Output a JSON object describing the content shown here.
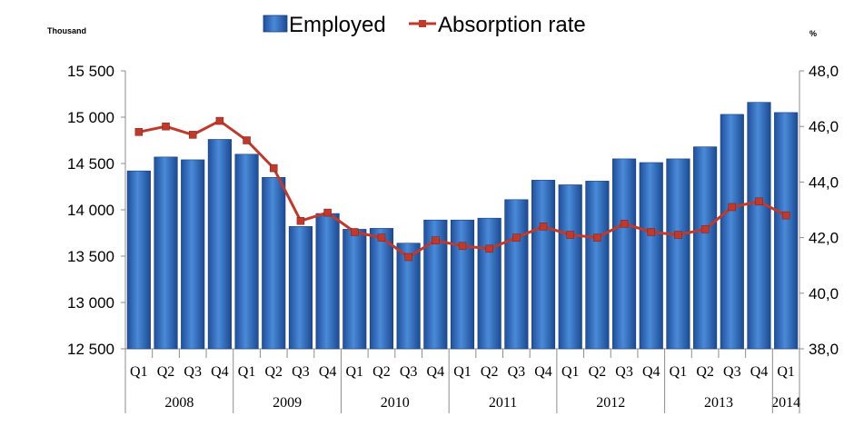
{
  "chart_data": {
    "type": "bar+line",
    "left_axis_unit": "Thousand",
    "right_axis_unit": "%",
    "quarters": [
      "Q1",
      "Q2",
      "Q3",
      "Q4",
      "Q1",
      "Q2",
      "Q3",
      "Q4",
      "Q1",
      "Q2",
      "Q3",
      "Q4",
      "Q1",
      "Q2",
      "Q3",
      "Q4",
      "Q1",
      "Q2",
      "Q3",
      "Q4",
      "Q1",
      "Q2",
      "Q3",
      "Q4",
      "Q1"
    ],
    "years": [
      {
        "label": "2008",
        "start": 0,
        "end": 4
      },
      {
        "label": "2009",
        "start": 4,
        "end": 8
      },
      {
        "label": "2010",
        "start": 8,
        "end": 12
      },
      {
        "label": "2011",
        "start": 12,
        "end": 16
      },
      {
        "label": "2012",
        "start": 16,
        "end": 20
      },
      {
        "label": "2013",
        "start": 20,
        "end": 24
      },
      {
        "label": "2014",
        "start": 24,
        "end": 25
      }
    ],
    "series": [
      {
        "name": "Employed",
        "type": "bar",
        "axis": "left",
        "color": "#2e6bc0",
        "values": [
          14420,
          14570,
          14540,
          14760,
          14600,
          14350,
          13820,
          13960,
          13790,
          13800,
          13640,
          13890,
          13890,
          13910,
          14110,
          14320,
          14270,
          14310,
          14550,
          14510,
          14550,
          14680,
          15030,
          15160,
          15050
        ]
      },
      {
        "name": "Absorption rate",
        "type": "line",
        "axis": "right",
        "color": "#c0392b",
        "values": [
          45.8,
          46.0,
          45.7,
          46.2,
          45.5,
          44.5,
          42.6,
          42.9,
          42.2,
          42.0,
          41.3,
          41.9,
          41.7,
          41.6,
          42.0,
          42.4,
          42.1,
          42.0,
          42.5,
          42.2,
          42.1,
          42.3,
          43.1,
          43.3,
          42.8
        ]
      }
    ],
    "left_ylim": [
      12500,
      15500
    ],
    "left_ticks": [
      "12 500",
      "13 000",
      "13 500",
      "14 000",
      "14 500",
      "15 000",
      "15 500"
    ],
    "right_ylim": [
      38,
      48
    ],
    "right_ticks": [
      "38,0",
      "40,0",
      "42,0",
      "44,0",
      "46,0",
      "48,0"
    ],
    "legend_position": "top-center"
  }
}
